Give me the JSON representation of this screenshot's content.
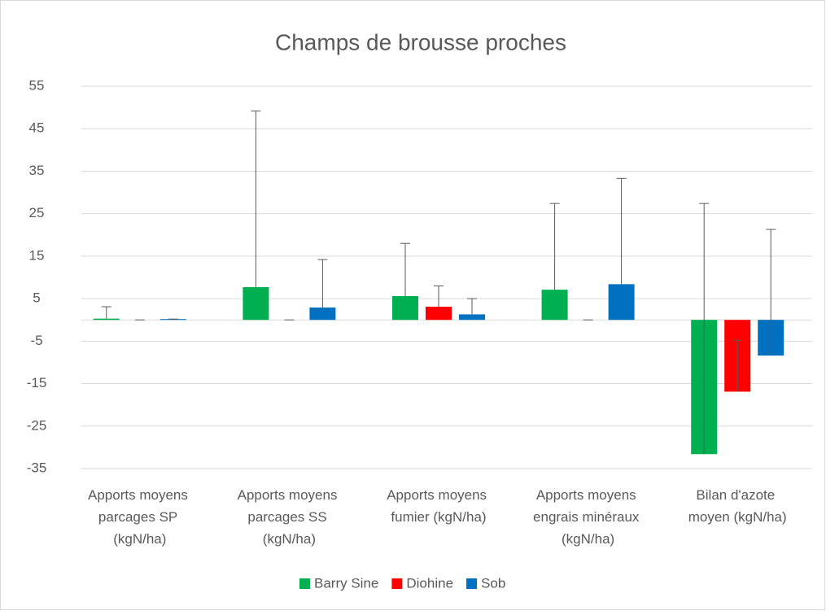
{
  "chart_data": {
    "type": "bar",
    "title": "Champs de brousse proches",
    "categories": [
      "Apports moyens parcages SP (kgN/ha)",
      "Apports moyens parcages SS (kgN/ha)",
      "Apports moyens fumier (kgN/ha)",
      "Apports moyens engrais minéraux (kgN/ha)",
      "Bilan d'azote moyen (kgN/ha)"
    ],
    "series": [
      {
        "name": "Barry Sine",
        "color": "#00b050",
        "values": [
          0.3,
          7.7,
          5.6,
          7.1,
          -31.6
        ],
        "errors": [
          2.8,
          41.5,
          12.4,
          20.3,
          59
        ]
      },
      {
        "name": "Diohine",
        "color": "#ff0000",
        "values": [
          0,
          0,
          3.1,
          0,
          -16.9
        ],
        "errors": [
          0,
          0,
          4.9,
          0,
          12.1
        ]
      },
      {
        "name": "Sob",
        "color": "#0070c0",
        "values": [
          0.2,
          2.9,
          1.3,
          8.4,
          -8.4
        ],
        "errors": [
          0,
          11.3,
          3.7,
          24.9,
          29.7
        ]
      }
    ],
    "ylim": [
      -35,
      55
    ],
    "yticks": [
      -35,
      -25,
      -15,
      -5,
      5,
      15,
      25,
      35,
      45,
      55
    ],
    "grid": true,
    "legend": "bottom"
  }
}
